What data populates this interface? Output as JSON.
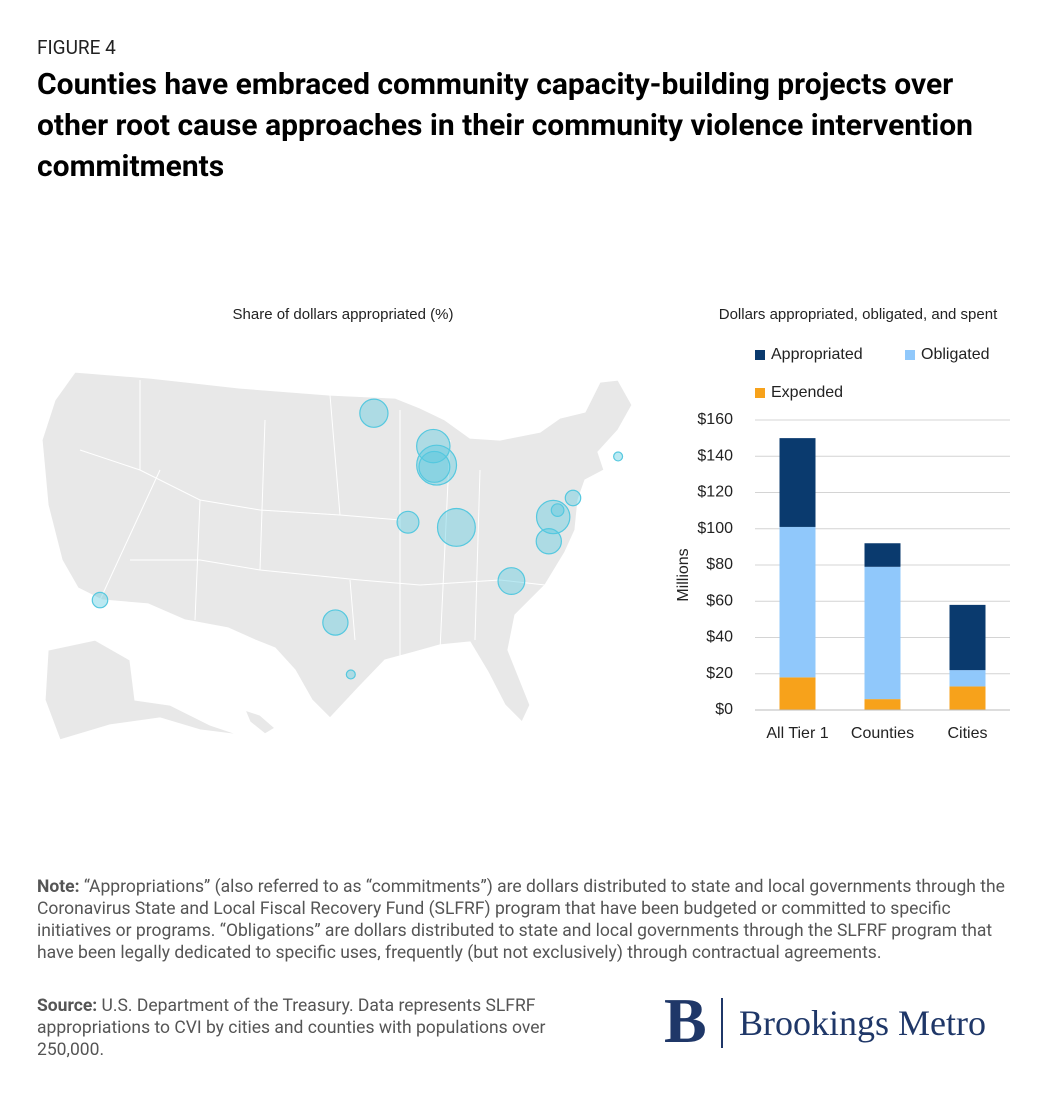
{
  "header": {
    "label": "FIGURE 4",
    "title": "Counties have embraced community capacity-building projects over other root cause approaches in their community violence intervention commitments"
  },
  "chart_data": [
    {
      "type": "bubble-map",
      "title": "Share of dollars appropriated (%)",
      "x": [
        -118.2,
        -95.4,
        -96.8,
        -90.2,
        -93.3,
        -87.9,
        -87.6,
        -87.8,
        -85.8,
        -80.8,
        -77.4,
        -77.0,
        -76.6,
        -75.2,
        -71.1
      ],
      "y": [
        34.1,
        29.8,
        32.8,
        38.6,
        44.9,
        43.0,
        41.9,
        41.8,
        38.3,
        35.2,
        37.5,
        38.9,
        39.3,
        40.0,
        42.4
      ],
      "values": [
        1.5,
        0.5,
        4,
        3,
        5,
        7,
        10,
        6,
        9,
        4.5,
        4,
        7,
        1,
        1.5,
        0.5
      ],
      "color": "#55c8df"
    },
    {
      "type": "stacked-bar",
      "title": "Dollars appropriated, obligated, and spent",
      "categories": [
        "All Tier 1",
        "Counties",
        "Cities"
      ],
      "series": [
        {
          "name": "Appropriated",
          "color": "#0a3a6e",
          "values": [
            49,
            13,
            36
          ]
        },
        {
          "name": "Obligated",
          "color": "#90c8fb",
          "values": [
            83,
            73,
            9
          ]
        },
        {
          "name": "Expended",
          "color": "#f7a21b",
          "values": [
            18,
            6,
            13
          ]
        }
      ],
      "y_label": "Millions",
      "ylim": [
        0,
        160
      ],
      "yticks": [
        {
          "value": 0,
          "label": "$0"
        },
        {
          "value": 20,
          "label": "$20"
        },
        {
          "value": 40,
          "label": "$40"
        },
        {
          "value": 60,
          "label": "$60"
        },
        {
          "value": 80,
          "label": "$80"
        },
        {
          "value": 100,
          "label": "$100"
        },
        {
          "value": 120,
          "label": "$120"
        },
        {
          "value": 140,
          "label": "$140"
        },
        {
          "value": 160,
          "label": "$160"
        }
      ],
      "grid": true
    }
  ],
  "note": {
    "label": "Note:",
    "text": "“Appropriations” (also referred to as “commitments”) are dollars distributed to state and local governments through the Coronavirus State and Local Fiscal Recovery Fund (SLFRF) program that have been budgeted or committed to specific initiatives or programs. “Obligations” are dollars distributed to state and local governments through the SLFRF program that have been legally dedicated to specific uses, frequently (but not exclusively) through contractual agreements."
  },
  "source": {
    "label": "Source:",
    "text": "U.S. Department of the Treasury. Data represents SLFRF appropriations to CVI by cities and counties with populations over 250,000."
  },
  "logo": {
    "mark": "B",
    "text": "Brookings Metro"
  }
}
